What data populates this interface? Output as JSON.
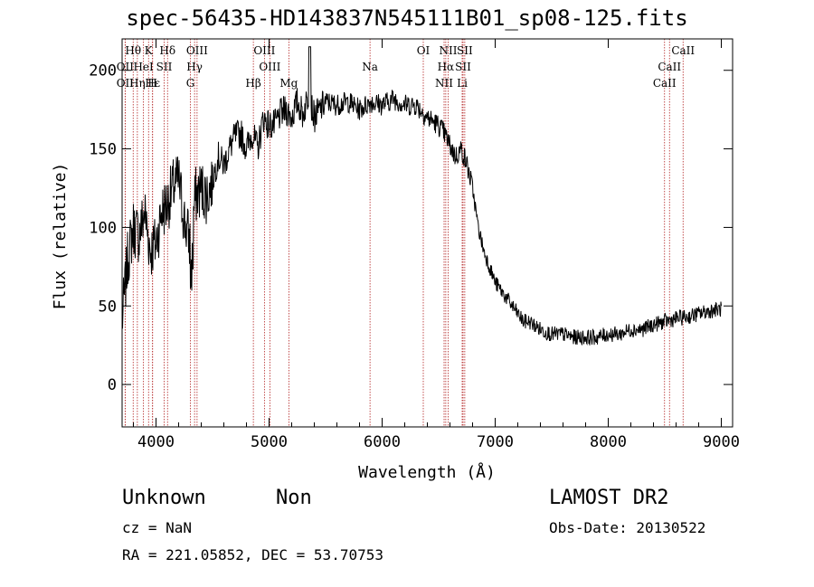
{
  "chart_data": {
    "type": "line",
    "title": "spec-56435-HD143837N545111B01_sp08-125.fits",
    "xlabel": "Wavelength (Å)",
    "ylabel": "Flux (relative)",
    "xlim": [
      3700,
      9100
    ],
    "ylim": [
      -27,
      220
    ],
    "x_ticks": [
      4000,
      5000,
      6000,
      7000,
      8000,
      9000
    ],
    "y_ticks": [
      0,
      50,
      100,
      150,
      200
    ],
    "grid": false,
    "series": [
      {
        "x": [
          3700,
          3750,
          3800,
          3850,
          3900,
          3950,
          4000,
          4050,
          4100,
          4150,
          4200,
          4250,
          4300,
          4350,
          4400,
          4450,
          4500,
          4550,
          4600,
          4650,
          4700,
          4750,
          4800,
          4850,
          4900,
          4950,
          5000,
          5050,
          5100,
          5150,
          5200,
          5250,
          5300,
          5350,
          5400,
          5450,
          5500,
          5600,
          5700,
          5800,
          5900,
          6000,
          6100,
          6200,
          6300,
          6400,
          6500,
          6550,
          6600,
          6650,
          6700,
          6750,
          6800,
          6850,
          6900,
          6950,
          7000,
          7050,
          7100,
          7150,
          7200,
          7250,
          7300,
          7400,
          7500,
          7600,
          7700,
          7800,
          7900,
          8000,
          8100,
          8200,
          8300,
          8400,
          8500,
          8600,
          8700,
          8800,
          8900,
          9000
        ],
        "y": [
          40,
          80,
          100,
          95,
          110,
          85,
          90,
          110,
          115,
          125,
          130,
          105,
          90,
          120,
          125,
          120,
          130,
          145,
          140,
          150,
          158,
          160,
          150,
          160,
          150,
          170,
          165,
          165,
          172,
          175,
          170,
          180,
          172,
          185,
          170,
          175,
          180,
          178,
          180,
          175,
          180,
          178,
          182,
          178,
          178,
          170,
          165,
          160,
          152,
          145,
          150,
          140,
          125,
          100,
          85,
          75,
          65,
          60,
          55,
          50,
          45,
          40,
          40,
          35,
          32,
          32,
          30,
          30,
          30,
          32,
          32,
          35,
          35,
          38,
          40,
          42,
          43,
          45,
          47,
          48
        ]
      }
    ],
    "line_markers": [
      {
        "name": "Hθ",
        "wavelength": 3798,
        "row": 0
      },
      {
        "name": "K",
        "wavelength": 3934,
        "row": 0
      },
      {
        "name": "Hδ",
        "wavelength": 4102,
        "row": 0
      },
      {
        "name": "OIII",
        "wavelength": 4363,
        "row": 0
      },
      {
        "name": "OIII",
        "wavelength": 4959,
        "row": 0
      },
      {
        "name": "OI",
        "wavelength": 6364,
        "row": 0
      },
      {
        "name": "NII",
        "wavelength": 6584,
        "row": 0
      },
      {
        "name": "SII",
        "wavelength": 6731,
        "row": 0
      },
      {
        "name": "CaII",
        "wavelength": 8662,
        "row": 0
      },
      {
        "name": "OII",
        "wavelength": 3727,
        "row": 1
      },
      {
        "name": "HeI",
        "wavelength": 3889,
        "row": 1
      },
      {
        "name": "SII",
        "wavelength": 4072,
        "row": 1
      },
      {
        "name": "Hγ",
        "wavelength": 4341,
        "row": 1
      },
      {
        "name": "OIII",
        "wavelength": 5007,
        "row": 1
      },
      {
        "name": "Na",
        "wavelength": 5893,
        "row": 1
      },
      {
        "name": "Hα",
        "wavelength": 6563,
        "row": 1
      },
      {
        "name": "SII",
        "wavelength": 6716,
        "row": 1
      },
      {
        "name": "CaII",
        "wavelength": 8542,
        "row": 1
      },
      {
        "name": "OII",
        "wavelength": 3727,
        "row": 2
      },
      {
        "name": "Hε",
        "wavelength": 3970,
        "row": 2
      },
      {
        "name": "Hη",
        "wavelength": 3835,
        "row": 2
      },
      {
        "name": "H",
        "wavelength": 3969,
        "row": 2
      },
      {
        "name": "G",
        "wavelength": 4304,
        "row": 2
      },
      {
        "name": "Hβ",
        "wavelength": 4861,
        "row": 2
      },
      {
        "name": "Mg",
        "wavelength": 5175,
        "row": 2
      },
      {
        "name": "NII",
        "wavelength": 6548,
        "row": 2
      },
      {
        "name": "Li",
        "wavelength": 6708,
        "row": 2
      },
      {
        "name": "CaII",
        "wavelength": 8498,
        "row": 2
      }
    ]
  },
  "footer": {
    "object_class": "Unknown",
    "object_subclass": "Non",
    "survey": "LAMOST DR2",
    "cz": "cz = NaN",
    "obs_date": "Obs-Date: 20130522",
    "coords": "RA = 221.05852, DEC =  53.70753"
  },
  "colors": {
    "spectrum": "#000000",
    "line_marker": "#b22222"
  }
}
